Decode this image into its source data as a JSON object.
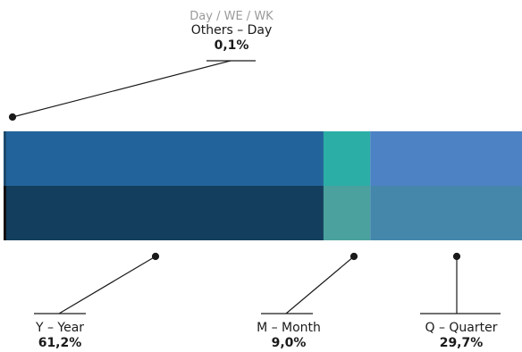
{
  "chart_data": {
    "type": "bar",
    "subtitle": "Day / WE / WK",
    "segments": [
      {
        "name": "Y – Year",
        "value": 61.2,
        "label": "61,2%",
        "color_top": "#23639b",
        "color_bottom": "#133e5d"
      },
      {
        "name": "M – Month",
        "value": 9.0,
        "label": "9,0%",
        "color_top": "#2baea6",
        "color_bottom": "#4aa19d"
      },
      {
        "name": "Q – Quarter",
        "value": 29.7,
        "label": "29,7%",
        "color_top": "#4d82c4",
        "color_bottom": "#4487ab"
      },
      {
        "name": "Others – Day",
        "value": 0.1,
        "label": "0,1%",
        "color_top": "#1c4a6e",
        "color_bottom": "#111111"
      }
    ]
  }
}
